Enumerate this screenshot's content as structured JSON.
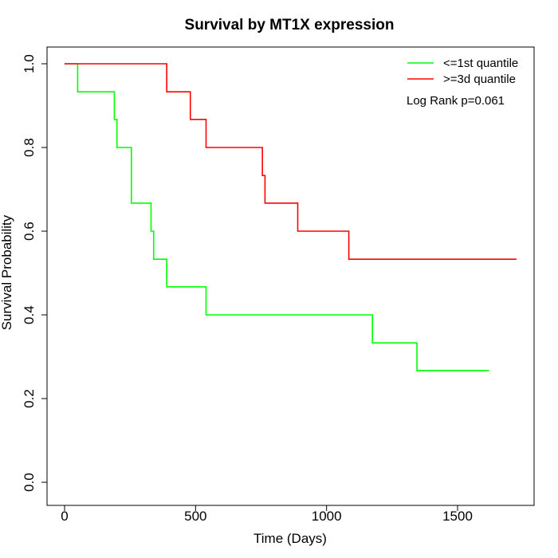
{
  "chart_data": {
    "type": "line",
    "subtype": "kaplan-meier-step",
    "title": "Survival by MT1X expression",
    "xlabel": "Time (Days)",
    "ylabel": "Survival Probability",
    "xlim": [
      0,
      1750
    ],
    "ylim": [
      0,
      1.0
    ],
    "x_ticks": [
      0,
      500,
      1000,
      1500
    ],
    "x_tick_labels": [
      "0",
      "500",
      "1000",
      "1500"
    ],
    "y_ticks": [
      0.0,
      0.2,
      0.4,
      0.6,
      0.8,
      1.0
    ],
    "y_tick_labels": [
      "0.0",
      "0.2",
      "0.4",
      "0.6",
      "0.8",
      "1.0"
    ],
    "grid": false,
    "legend_position": "top-right",
    "annotation": "Log Rank p=0.061",
    "series": [
      {
        "name": "<=1st quantile",
        "color": "#00ff00",
        "x": [
          0,
          50,
          190,
          200,
          255,
          330,
          340,
          390,
          540,
          1175,
          1345,
          1620
        ],
        "y": [
          1.0,
          0.933,
          0.867,
          0.8,
          0.667,
          0.6,
          0.533,
          0.467,
          0.4,
          0.333,
          0.267,
          0.267
        ]
      },
      {
        "name": ">=3d quantile",
        "color": "#ff0000",
        "x": [
          0,
          390,
          480,
          540,
          755,
          765,
          890,
          1085,
          1725
        ],
        "y": [
          1.0,
          0.933,
          0.867,
          0.8,
          0.733,
          0.667,
          0.6,
          0.533,
          0.533
        ]
      }
    ]
  }
}
